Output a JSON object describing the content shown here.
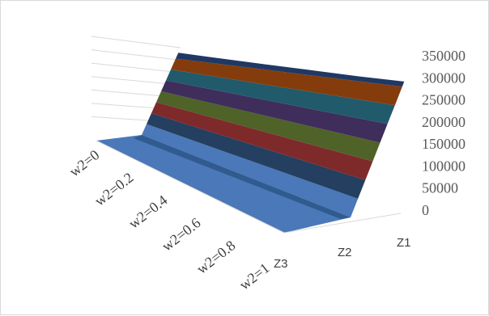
{
  "chart_data": {
    "type": "surface-3d",
    "title": "",
    "x_categories": [
      "w2=0",
      "w2=0.2",
      "w2=0.4",
      "w2=0.6",
      "w2=0.8",
      "w2=1"
    ],
    "series_categories": [
      "Z1",
      "Z2",
      "Z3"
    ],
    "z_axis": {
      "ticks": [
        "0",
        "50000",
        "100000",
        "150000",
        "200000",
        "250000",
        "300000",
        "350000"
      ],
      "zlim": [
        0,
        350000
      ],
      "major_unit": 50000
    },
    "series": [
      {
        "name": "Z1",
        "values": [
          330000,
          325000,
          322000,
          320000,
          318000,
          318000
        ]
      },
      {
        "name": "Z2",
        "values": [
          0,
          0,
          0,
          0,
          0,
          0
        ]
      },
      {
        "name": "Z3",
        "values": [
          0,
          0,
          0,
          0,
          0,
          0
        ]
      }
    ],
    "band_colors": [
      "#1f3864",
      "#843c0c",
      "#215a6b",
      "#3f2d5c",
      "#4f6228",
      "#7f2a2a",
      "#243f60",
      "#4a78b8"
    ],
    "grid": true,
    "legend": "none"
  }
}
